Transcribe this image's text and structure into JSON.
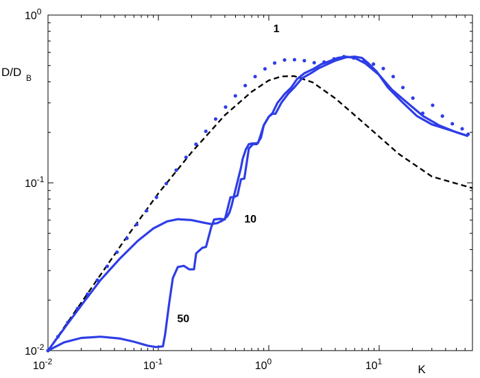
{
  "chart_data": {
    "type": "line",
    "xscale": "log",
    "yscale": "log",
    "xlim": [
      0.01,
      70
    ],
    "ylim": [
      0.01,
      1
    ],
    "xlabel": "K",
    "ylabel": "D/D",
    "ylabel_sub": "B",
    "grid": false,
    "legend": "none",
    "xticks": [
      {
        "value": 0.01,
        "base": "10",
        "exp": "-2"
      },
      {
        "value": 0.1,
        "base": "10",
        "exp": "-1"
      },
      {
        "value": 1,
        "base": "10",
        "exp": "0"
      },
      {
        "value": 10,
        "base": "10",
        "exp": "1"
      }
    ],
    "yticks": [
      {
        "value": 0.01,
        "base": "10",
        "exp": "-2"
      },
      {
        "value": 0.1,
        "base": "10",
        "exp": "-1"
      },
      {
        "value": 1,
        "base": "10",
        "exp": "0"
      }
    ],
    "annotations": [
      {
        "text": "1",
        "x": 1.1,
        "y": 0.79
      },
      {
        "text": "10",
        "x": 0.6,
        "y": 0.058
      },
      {
        "text": "50",
        "x": 0.148,
        "y": 0.0148
      }
    ],
    "series": [
      {
        "style": "dashed",
        "color": "#000000",
        "x": [
          0.01,
          0.02,
          0.05,
          0.1,
          0.2,
          0.4,
          0.7,
          1.0,
          1.3,
          1.7,
          2.5,
          4,
          7,
          15,
          30,
          70
        ],
        "y": [
          0.01,
          0.0193,
          0.0461,
          0.0866,
          0.152,
          0.253,
          0.349,
          0.408,
          0.431,
          0.433,
          0.397,
          0.319,
          0.232,
          0.149,
          0.109,
          0.093
        ]
      },
      {
        "style": "dotted",
        "color": "#2e3de6",
        "x": [
          0.01,
          0.0123,
          0.0151,
          0.0185,
          0.0228,
          0.028,
          0.0344,
          0.0422,
          0.0519,
          0.0637,
          0.0782,
          0.0961,
          0.118,
          0.145,
          0.178,
          0.219,
          0.269,
          0.33,
          0.406,
          0.498,
          0.612,
          0.752,
          0.924,
          1.13,
          1.39,
          1.71,
          2.1,
          2.58,
          3.17,
          3.9,
          4.79,
          5.88,
          7.22,
          8.87,
          10.9,
          13.4,
          16.4,
          20.2,
          24.8,
          30.5,
          37.4,
          46,
          56.5,
          64
        ],
        "y": [
          0.01,
          0.0121,
          0.0147,
          0.0178,
          0.0217,
          0.0263,
          0.0318,
          0.0386,
          0.0467,
          0.0565,
          0.0682,
          0.082,
          0.099,
          0.119,
          0.142,
          0.17,
          0.203,
          0.24,
          0.283,
          0.33,
          0.38,
          0.43,
          0.478,
          0.518,
          0.54,
          0.542,
          0.535,
          0.52,
          0.525,
          0.548,
          0.565,
          0.555,
          0.53,
          0.51,
          0.48,
          0.43,
          0.37,
          0.32,
          0.26,
          0.29,
          0.25,
          0.225,
          0.21,
          0.195
        ]
      },
      {
        "style": "solid",
        "color": "#2e3de6",
        "x": [
          0.01,
          0.015,
          0.022,
          0.03,
          0.045,
          0.065,
          0.09,
          0.12,
          0.15,
          0.2,
          0.26,
          0.3,
          0.34,
          0.38,
          0.42,
          0.44,
          0.46,
          0.48,
          0.52,
          0.56,
          0.58,
          0.62,
          0.66,
          0.72,
          0.76,
          0.8,
          0.85,
          0.9,
          1.0,
          1.08,
          1.15,
          1.3,
          1.5,
          1.7,
          2.0,
          2.4,
          2.8,
          3.3,
          4,
          5,
          6,
          7,
          8,
          9.5,
          12,
          16,
          22,
          30,
          45,
          64
        ],
        "y": [
          0.01,
          0.0144,
          0.0202,
          0.0264,
          0.0355,
          0.0451,
          0.0535,
          0.0589,
          0.0607,
          0.06,
          0.0578,
          0.0568,
          0.0575,
          0.0595,
          0.063,
          0.0665,
          0.073,
          0.082,
          0.101,
          0.123,
          0.139,
          0.158,
          0.17,
          0.172,
          0.172,
          0.173,
          0.195,
          0.22,
          0.248,
          0.258,
          0.258,
          0.3,
          0.34,
          0.37,
          0.42,
          0.45,
          0.48,
          0.505,
          0.535,
          0.56,
          0.565,
          0.555,
          0.515,
          0.46,
          0.37,
          0.305,
          0.25,
          0.223,
          0.205,
          0.19
        ]
      },
      {
        "style": "solid",
        "color": "#2e3de6",
        "x": [
          0.01,
          0.014,
          0.02,
          0.03,
          0.045,
          0.06,
          0.08,
          0.095,
          0.11,
          0.115,
          0.125,
          0.135,
          0.15,
          0.17,
          0.19,
          0.21,
          0.22,
          0.25,
          0.27,
          0.3,
          0.32,
          0.36,
          0.4,
          0.45,
          0.48,
          0.52,
          0.56,
          0.6,
          0.66,
          0.72,
          0.78,
          0.85,
          0.9,
          1.0,
          1.08,
          1.2,
          1.4,
          1.6,
          1.8,
          2.1,
          2.5,
          3.0,
          3.5,
          4.2,
          5.0,
          6.0,
          7.5,
          10,
          13,
          18,
          25,
          35,
          50,
          64
        ],
        "y": [
          0.01,
          0.0112,
          0.0119,
          0.0121,
          0.0118,
          0.0113,
          0.0107,
          0.0105,
          0.0106,
          0.0125,
          0.019,
          0.027,
          0.0315,
          0.032,
          0.0305,
          0.0305,
          0.038,
          0.041,
          0.0415,
          0.054,
          0.0605,
          0.061,
          0.0605,
          0.082,
          0.082,
          0.084,
          0.105,
          0.106,
          0.16,
          0.17,
          0.17,
          0.186,
          0.22,
          0.248,
          0.26,
          0.3,
          0.34,
          0.37,
          0.415,
          0.45,
          0.475,
          0.51,
          0.53,
          0.555,
          0.565,
          0.555,
          0.515,
          0.44,
          0.36,
          0.3,
          0.25,
          0.22,
          0.2,
          0.19
        ]
      }
    ]
  }
}
